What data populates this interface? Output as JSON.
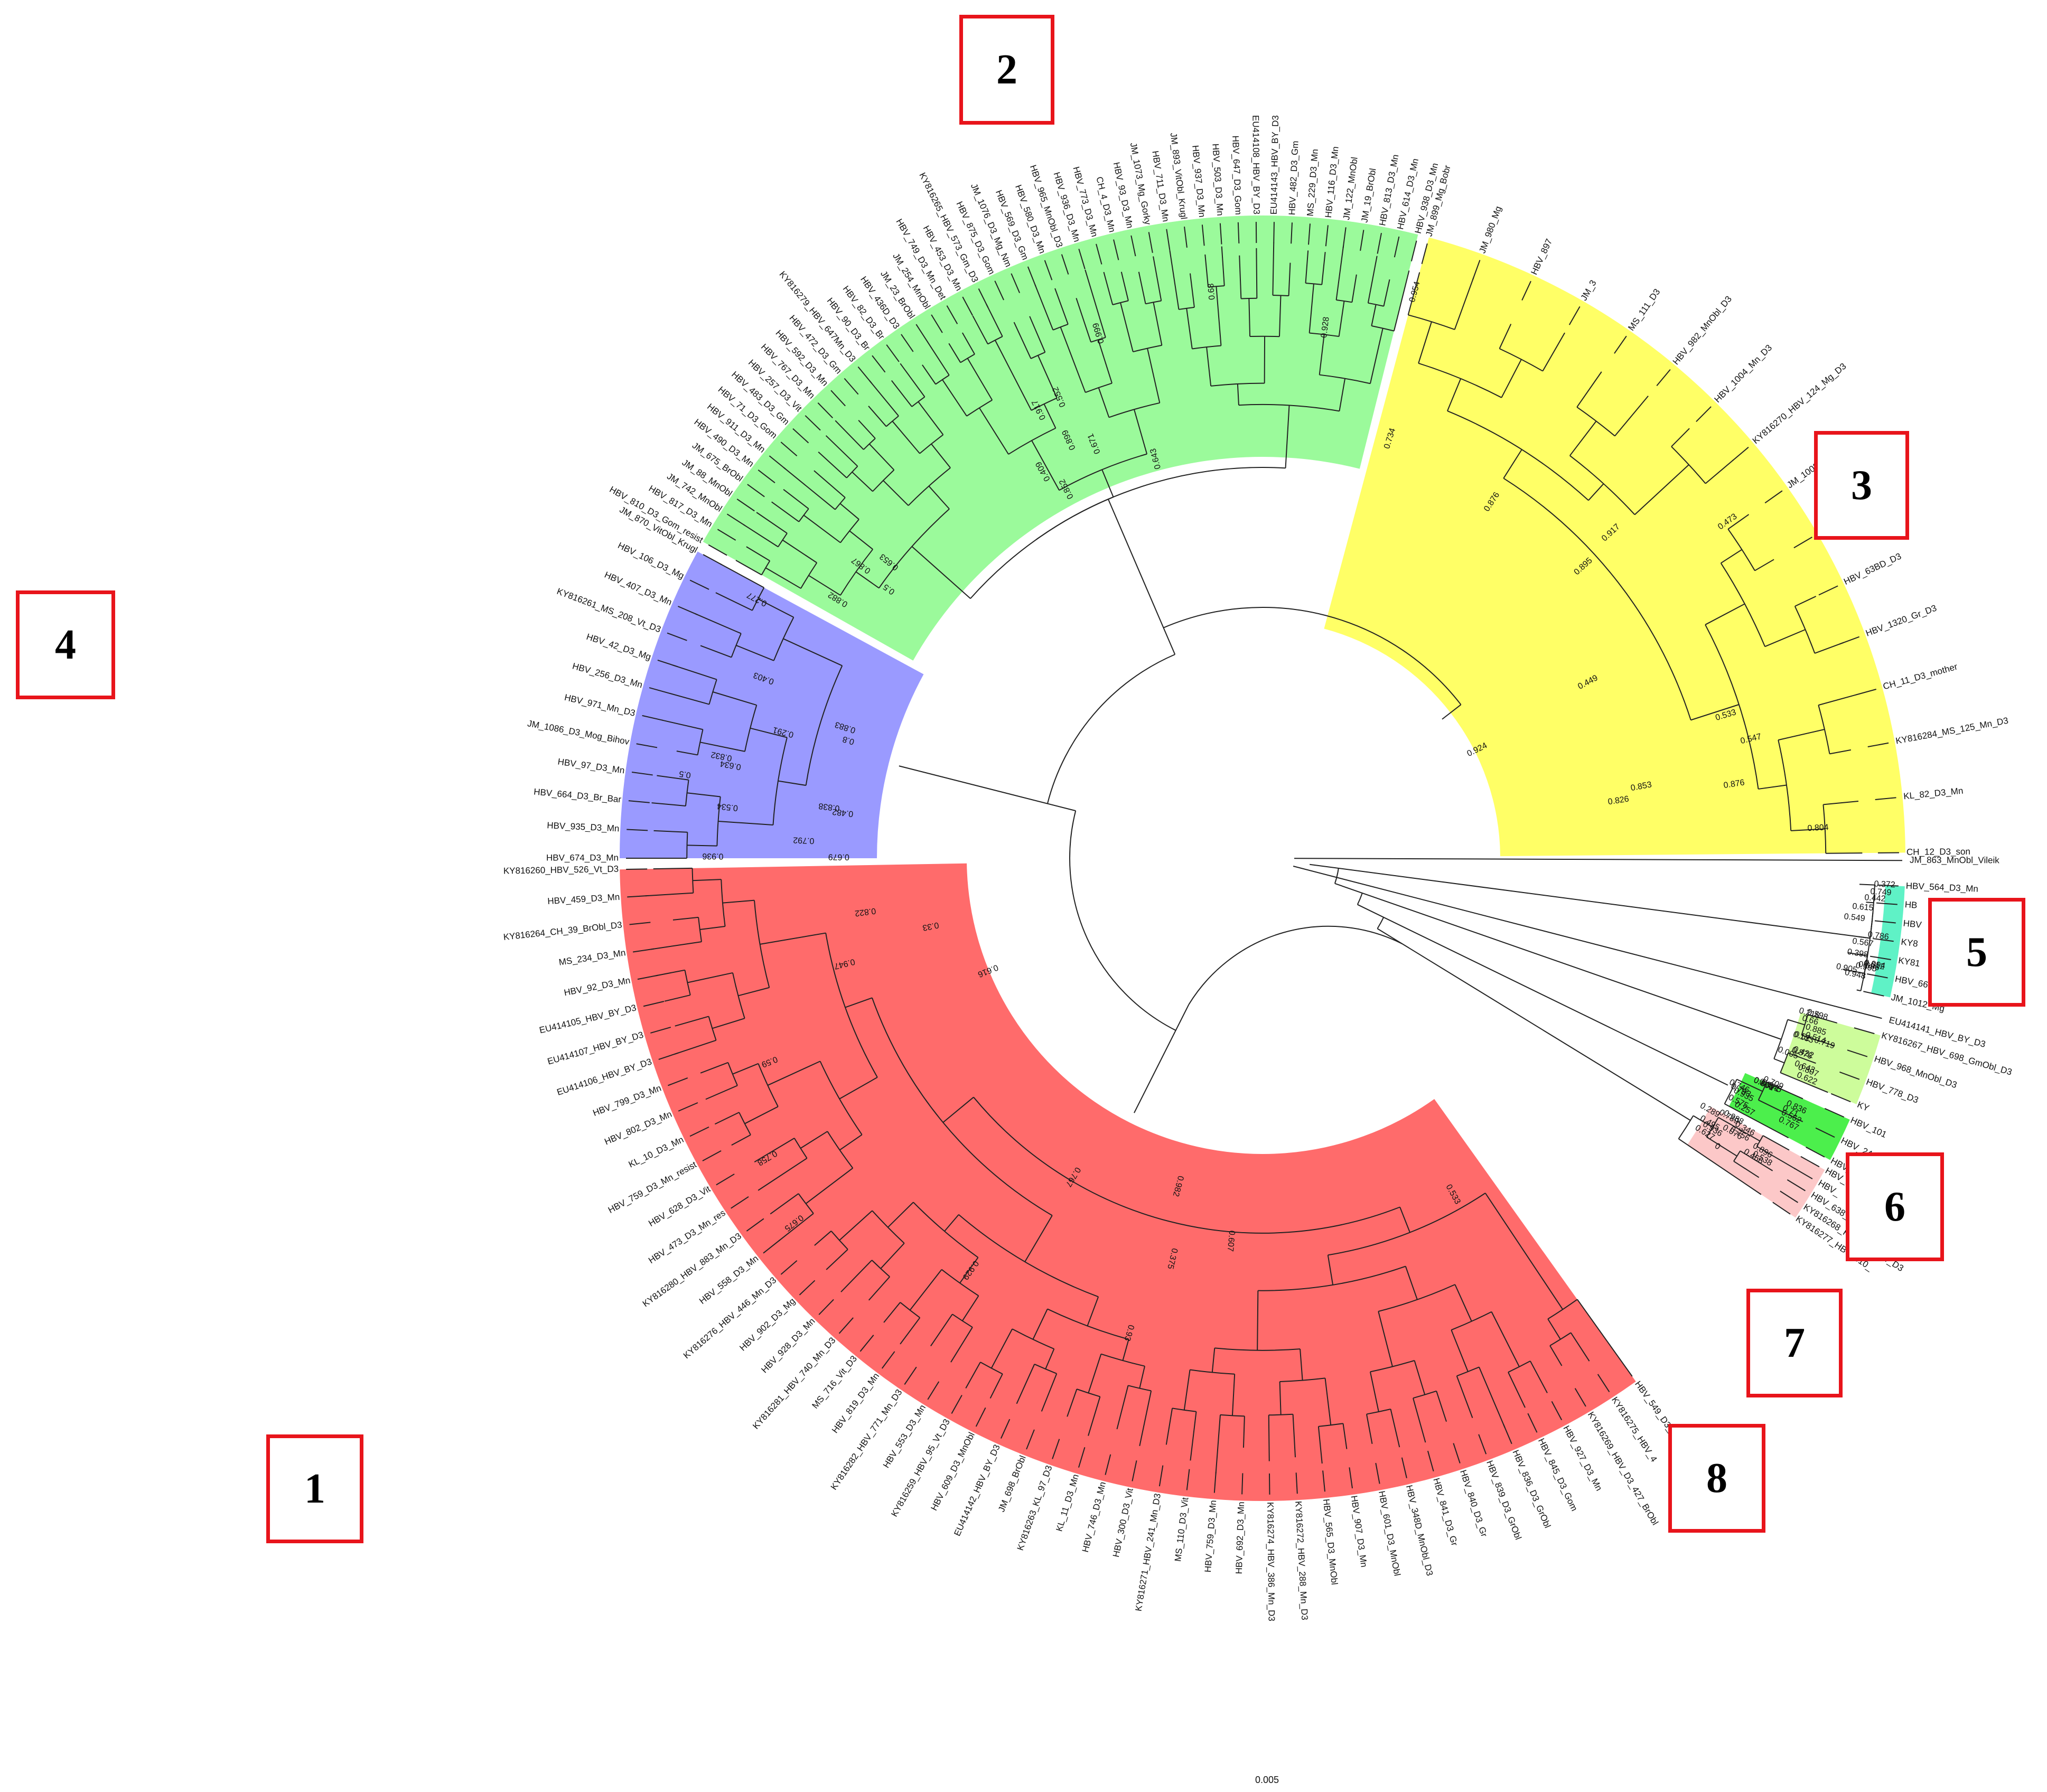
{
  "clade_colors": {
    "1": "#ff6b6b",
    "2": "#9bfa9b",
    "3": "#ffff66",
    "4": "#9a9aff",
    "5": "#5ff2c6",
    "6": "#4cef4c",
    "7": "#cdfc9b",
    "8": "#fcc8c8"
  },
  "clade_labels": {
    "c1": "1",
    "c2": "2",
    "c3": "3",
    "c4": "4",
    "c5": "5",
    "c6": "6",
    "c7": "7",
    "c8": "8"
  },
  "scale": "0.005",
  "clades": [
    {
      "id": "2",
      "leaves": [
        "HBV_810_D3_Gom_resist",
        "HBV_817_D3_Mn",
        "JM_742_MnObl",
        "JM_88_MnObl",
        "JM_675_BrObl",
        "HBV_490_D3_Mn",
        "HBV_911_D3_Mn",
        "HBV_71_D3_Gom",
        "HBV_483_D3_Gm",
        "HBV_257_D3_Vit",
        "HBV_767_D3_Mn",
        "HBV_592_D3_Mn",
        "HBV_472_D3_Gm",
        "KY816279_HBV_647Mn_D3",
        "HBV_90_D3_Br",
        "HBV_82_D3_Br",
        "HBV_436D_D3",
        "JM_23_BrObl",
        "JM_254_MnObl",
        "HBV_749_D3_Mn_Det",
        "HBV_453_D3_Mn",
        "KY816265_HBV_573_Gm_D3",
        "HBV_875_D3_Gom",
        "JM_1076_D3_Mg_Nm",
        "HBV_569_D3_Gm",
        "HBV_580_D3_Mn",
        "HBV_965_MnObl_D3",
        "HBV_936_D3_Mn",
        "HBV_773_D3_Mn",
        "CH_4_D3_Mn",
        "HBV_93_D3_Mn",
        "JM_1073_Mg_Gorky",
        "HBV_711_D3_Mn",
        "JM_893_VitObl_Krugl",
        "HBV_937_D3_Mn",
        "HBV_503_D3_Mn",
        "HBV_647_D3_Gom",
        "EU414108_HBV_BY_D3",
        "EU414143_HBV_BY_D3",
        "HBV_482_D3_Gm",
        "MS_229_D3_Mn",
        "HBV_116_D3_Mn",
        "JM_122_MnObl",
        "JM_19_BrObl",
        "HBV_813_D3_Mn",
        "HBV_614_D3_Mn",
        "HBV_938_D3_Mn"
      ]
    },
    {
      "id": "3",
      "leaves": [
        "JM_899_Mg_Bobr",
        "JM_980_Mg",
        "HBV_897",
        "JM_3",
        "MS_111_D3",
        "HBV_982_MnObl_D3",
        "HBV_1004_Mn_D3",
        "KY816270_HBV_124_Mg_D3",
        "JM_1003_Mg",
        "HBV_98D_D3",
        "HBV_63BD_D3",
        "HBV_1320_Gr_D3",
        "CH_11_D3_mother",
        "KY816284_MS_125_Mn_D3",
        "KL_82_D3_Mn",
        "CH_12_D3_son"
      ]
    },
    {
      "id": "4",
      "leaves": [
        "HBV_674_D3_Mn",
        "HBV_935_D3_Mn",
        "HBV_664_D3_Br_Bar",
        "HBV_97_D3_Mn",
        "JM_1086_D3_Mog_Bihov",
        "HBV_971_Mn_D3",
        "HBV_256_D3_Mn",
        "HBV_42_D3_Mg",
        "KY816261_MS_208_Vt_D3",
        "HBV_407_D3_Mn",
        "HBV_106_D3_Mg",
        "JM_870_VitObl_Krugl"
      ]
    },
    {
      "id": "1",
      "leaves": [
        "KY816260_HBV_526_Vt_D3",
        "HBV_459_D3_Mn",
        "KY816264_CH_39_BrObl_D3",
        "MS_234_D3_Mn",
        "HBV_92_D3_Mn",
        "EU414105_HBV_BY_D3",
        "EU414107_HBV_BY_D3",
        "EU414106_HBV_BY_D3",
        "HBV_799_D3_Mn",
        "HBV_802_D3_Mn",
        "KL_10_D3_Mn",
        "HBV_759_D3_Mn_resist",
        "HBV_628_D3_Vit",
        "HBV_473_D3_Mn_res",
        "KY816280_HBV_883_Mn_D3",
        "HBV_558_D3_Mn",
        "KY816276_HBV_446_Mn_D3",
        "HBV_902_D3_Mg",
        "HBV_928_D3_Mn",
        "KY816281_HBV_740_Mn_D3",
        "MS_716_Vit_D3",
        "HBV_819_D3_Mn",
        "KY816282_HBV_771_Mn_D3",
        "HBV_553_D3_Mn",
        "KY816259_HBV_95_Vt_D3",
        "HBV_609_D3_MnObl",
        "EU414142_HBV_BY_D3",
        "JM_698_BrObl",
        "KY816263_KL_97_D3",
        "KL_11_D3_Mn",
        "HBV_746_D3_Mn",
        "HBV_300_D3_Vit",
        "KY816271_HBV_241_Mn_D3",
        "MS_110_D3_Vit",
        "HBV_759_D3_Mn",
        "HBV_692_D3_Mn",
        "KY816274_HBV_386_Mn_D3",
        "KY816272_HBV_288_Mn_D3",
        "HBV_565_D3_MnObl",
        "HBV_907_D3_Mn",
        "HBV_601_D3_MnObl",
        "HBV_348D_MnObl_D3",
        "HBV_841_D3_Gr",
        "HBV_840_D3_Gr",
        "HBV_839_D3_GrObl",
        "HBV_836_D3_GrObl",
        "HBV_845_D3_Gom",
        "HBV_927_D3_Mn",
        "KY816269_HBV_D3_427_BrObl",
        "KY816275_HBV_4",
        "HBV_549_D3_Mn"
      ]
    },
    {
      "id": "5",
      "leaves": [
        "HBV_564_D3_Mn",
        "HB",
        "HBV",
        "KY8",
        "KY81",
        "HBV_667_D3_Gom_resist",
        "JM_1012_Mg"
      ]
    },
    {
      "id": "7",
      "leaves": [
        "KY816267_HBV_698_GmObl_D3",
        "HBV_968_MnObl_D3",
        "HBV_778_D3",
        "KY"
      ]
    },
    {
      "id": "6",
      "leaves": [
        "HBV_101",
        "HBV_244_D3",
        "HBV_242_D3_Kupe"
      ]
    },
    {
      "id": "8",
      "leaves": [
        "HBV_243",
        "HBV_",
        "HBV_638_D3",
        "KY816268_HBV_329_Gr_D3",
        "KY816277_HBV_510_"
      ]
    }
  ],
  "singletons": [
    "JM_863_MnObl_Vileik",
    "EU414141_HBV_BY_D3"
  ],
  "support_values": [
    "0.653",
    "0.547",
    "0.291",
    "0.375",
    "0.749",
    "0.719",
    "0.767",
    "0.538",
    "0.852",
    "0.826",
    "0.838",
    "0.822",
    "0.549",
    "0.643",
    "0.793",
    "0.936",
    "0.899",
    "0.876",
    "0.8",
    "0.93",
    "0.786",
    "0.598",
    "0.746",
    "0.627",
    "0.5",
    "0.917",
    "0.277",
    "0.616",
    "0.905",
    "0.807",
    "0.562",
    "0.988",
    "0.643",
    "0.449",
    "0.5",
    "0.982",
    "0.398",
    "0.216",
    "0.206",
    "0.789",
    "0.552",
    "0.473",
    "0.792",
    "0.33",
    "0.442",
    "0.66",
    "0.371",
    "0.896",
    "0.917",
    "0.876",
    "0.634",
    "0.767",
    "0.686",
    "0.422",
    "0.71",
    "0.346",
    "0.409",
    "0.533",
    "0.534",
    "0.947",
    "0.994",
    "0.133",
    "0.709",
    "0",
    "0.882",
    "0.895",
    "0.936",
    "0.929",
    "0.612",
    "0.622",
    "0.257",
    "0.076",
    "0.928",
    "0.853",
    "0.832",
    "0.59",
    "0.567",
    "0.514",
    "0.345",
    "0.495",
    "0.671",
    "0.954",
    "0.883",
    "0.758",
    "0.615",
    "0.876",
    "0.575",
    "0.289",
    "0.68",
    "0.924",
    "0.679",
    "0.675",
    "0.372",
    "0.885",
    "0.935",
    "0.756",
    "0.867",
    "0.734",
    "0.403",
    "0.533",
    "0.948",
    "0.005",
    "0.651",
    "0.466",
    "0.999",
    "0.804",
    "0.482",
    "0.607",
    "0.995",
    "0.52",
    "0.836"
  ]
}
